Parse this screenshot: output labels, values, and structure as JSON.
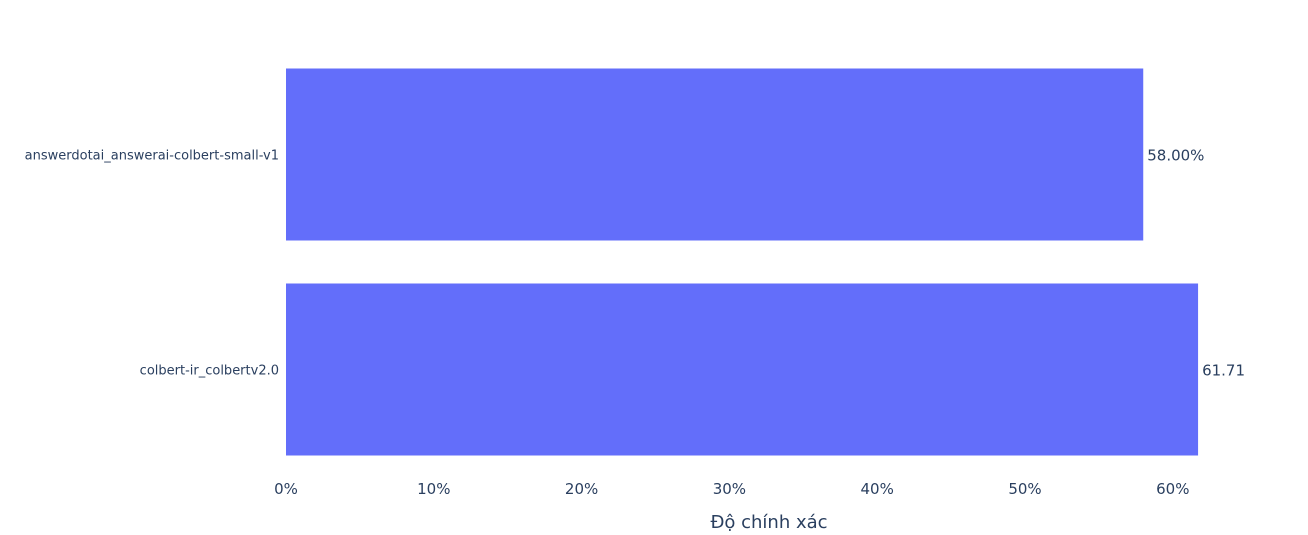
{
  "chart_data": {
    "type": "bar",
    "orientation": "horizontal",
    "categories": [
      "answerdotai_answerai-colbert-small-v1",
      "colbert-ir_colbertv2.0"
    ],
    "values": [
      58.0,
      61.71
    ],
    "data_labels": [
      "58.00%",
      "61.71"
    ],
    "xlabel": "Độ chính xác",
    "ylabel": "",
    "xlim": [
      0,
      62
    ],
    "x_ticks": [
      0,
      10,
      20,
      30,
      40,
      50,
      60
    ],
    "x_tick_labels": [
      "0%",
      "10%",
      "20%",
      "30%",
      "40%",
      "50%",
      "60%"
    ],
    "bar_color": "#636efa",
    "grid": false,
    "legend": "none"
  }
}
